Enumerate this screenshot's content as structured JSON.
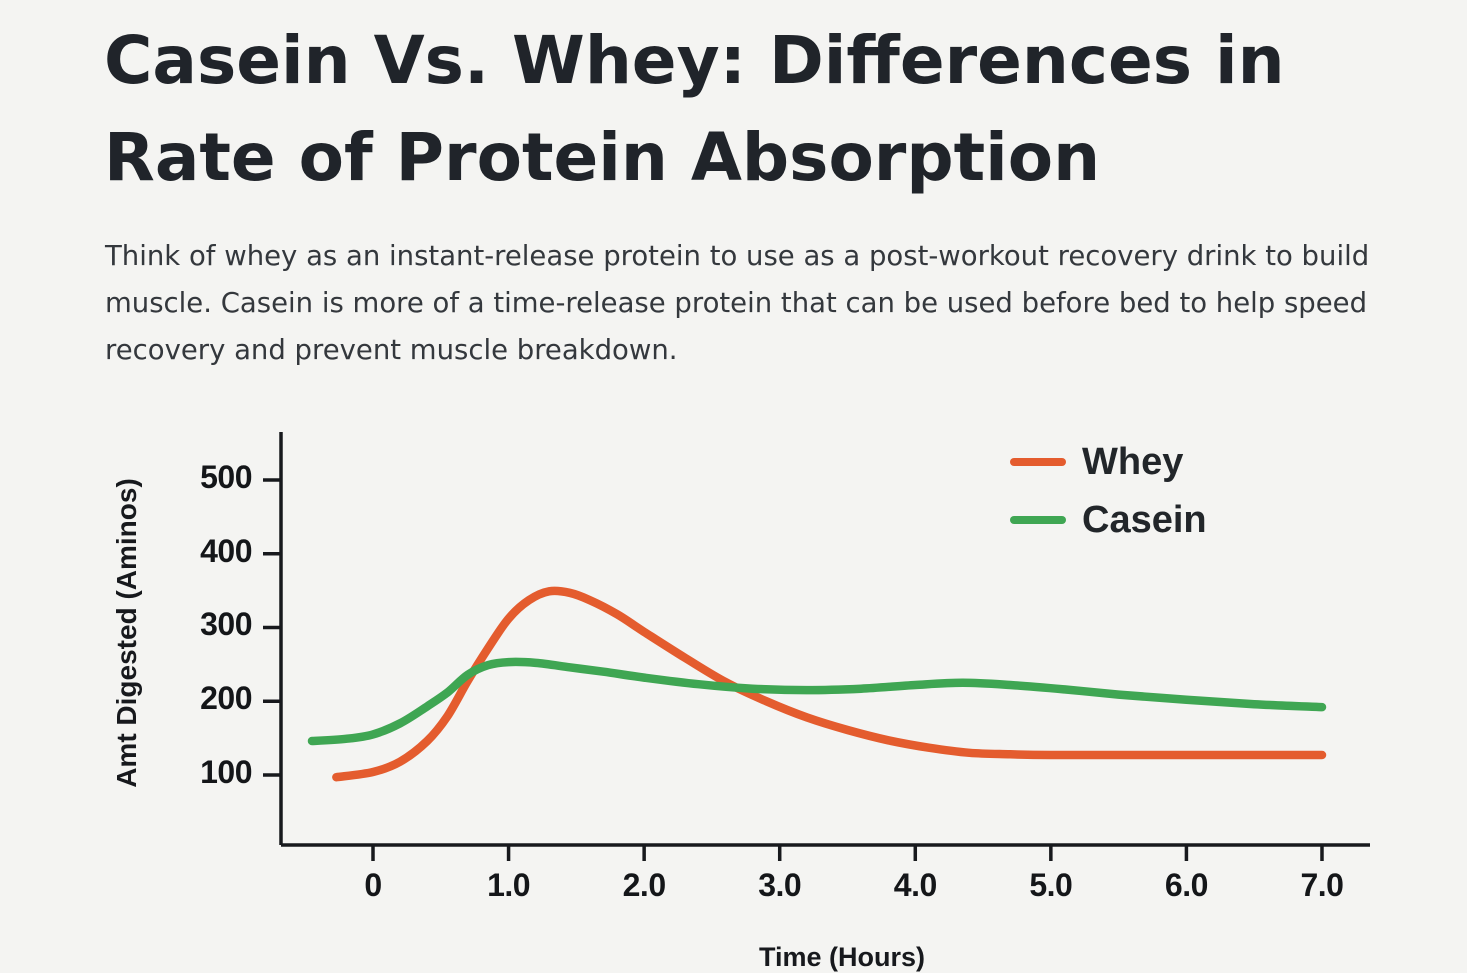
{
  "header": {
    "title": "Casein Vs. Whey: Differences in Rate of Protein Absorption",
    "paragraph": "Think of whey as an instant-release protein to use as a post-workout recovery drink to build muscle. Casein is more of a time-release protein that can be used before bed to help speed recovery and prevent muscle breakdown."
  },
  "colors": {
    "background": "#f4f4f2",
    "axis": "#17191d",
    "whey": "#e45c2e",
    "casein": "#3fa653"
  },
  "chart_data": {
    "type": "line",
    "xlabel": "Time (Hours)",
    "ylabel": "Amt Digested (Aminos)",
    "xlim": [
      -0.68,
      7.35
    ],
    "ylim": [
      0,
      560
    ],
    "x_ticks": [
      0,
      1,
      2,
      3,
      4,
      5,
      6,
      7
    ],
    "x_tick_labels": [
      "0",
      "1.0",
      "2.0",
      "3.0",
      "4.0",
      "5.0",
      "6.0",
      "7.0"
    ],
    "y_ticks": [
      100,
      200,
      300,
      400,
      500
    ],
    "y_tick_labels": [
      "100",
      "200",
      "300",
      "400",
      "500"
    ],
    "grid": false,
    "legend_position": "top-right",
    "series": [
      {
        "name": "Whey",
        "color": "#e45c2e",
        "x": [
          -0.27,
          0.0,
          0.2,
          0.4,
          0.55,
          0.7,
          0.85,
          1.0,
          1.15,
          1.3,
          1.45,
          1.6,
          1.8,
          2.0,
          2.3,
          2.6,
          2.9,
          3.2,
          3.5,
          3.8,
          4.1,
          4.4,
          4.7,
          5.0,
          5.5,
          6.0,
          6.5,
          7.0
        ],
        "y": [
          97,
          104,
          118,
          146,
          180,
          228,
          272,
          312,
          337,
          349,
          347,
          337,
          318,
          294,
          259,
          226,
          200,
          178,
          161,
          147,
          137,
          130,
          128,
          127,
          127,
          127,
          127,
          127
        ]
      },
      {
        "name": "Casein",
        "color": "#3fa653",
        "x": [
          -0.45,
          -0.2,
          0.0,
          0.2,
          0.4,
          0.55,
          0.7,
          0.85,
          1.0,
          1.2,
          1.45,
          1.7,
          2.0,
          2.4,
          2.8,
          3.2,
          3.6,
          4.0,
          4.35,
          4.7,
          5.1,
          5.5,
          6.0,
          6.5,
          7.0
        ],
        "y": [
          146,
          149,
          155,
          170,
          193,
          212,
          236,
          249,
          253,
          252,
          246,
          240,
          232,
          223,
          217,
          215,
          217,
          222,
          225,
          222,
          216,
          209,
          202,
          196,
          192
        ]
      }
    ]
  }
}
